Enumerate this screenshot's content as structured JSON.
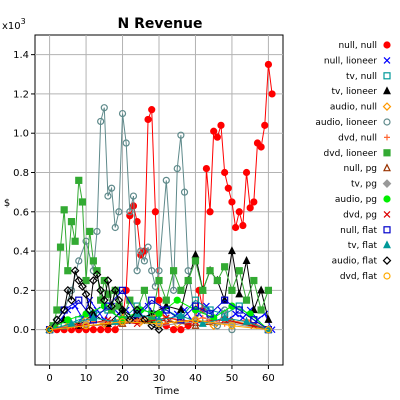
{
  "chart_data": {
    "type": "line",
    "title": "N Revenue",
    "xlabel": "Time",
    "ylabel": "$",
    "y_multiplier": "x10",
    "y_multiplier_exp": "3",
    "xlim": [
      -4,
      64
    ],
    "ylim": [
      -0.18,
      1.5
    ],
    "x_ticks": [
      "0",
      "10",
      "20",
      "30",
      "40",
      "50",
      "60"
    ],
    "x_tick_values": [
      0,
      10,
      20,
      30,
      40,
      50,
      60
    ],
    "y_ticks": [
      "0.0",
      "0.2",
      "0.4",
      "0.6",
      "0.8",
      "1.0",
      "1.2",
      "1.4"
    ],
    "y_tick_values": [
      0.0,
      0.2,
      0.4,
      0.6,
      0.8,
      1.0,
      1.2,
      1.4
    ],
    "grid": true,
    "legend_position": "right",
    "series": [
      {
        "name": "null, null",
        "color": "#ff0000",
        "marker": "circle",
        "filled": true,
        "x": [
          0,
          2,
          4,
          6,
          8,
          10,
          12,
          14,
          16,
          18,
          20,
          21,
          22,
          23,
          24,
          25,
          26,
          27,
          28,
          29,
          30,
          32,
          34,
          36,
          38,
          40,
          41,
          42,
          43,
          44,
          45,
          46,
          47,
          48,
          49,
          50,
          51,
          52,
          53,
          54,
          55,
          56,
          57,
          58,
          59,
          60,
          61
        ],
        "y": [
          0,
          0,
          0,
          0,
          0,
          0,
          0,
          0,
          0,
          0,
          0.05,
          0.2,
          0.58,
          0.63,
          0.55,
          0.38,
          0.4,
          1.07,
          1.12,
          0.6,
          0.15,
          0.02,
          0,
          0,
          0.02,
          0.05,
          0.2,
          0.1,
          0.82,
          0.6,
          1.01,
          0.98,
          1.04,
          0.8,
          0.72,
          0.65,
          0.52,
          0.6,
          0.53,
          0.8,
          0.62,
          0.65,
          0.95,
          0.93,
          1.04,
          1.35,
          1.2
        ]
      },
      {
        "name": "null, lioneer",
        "color": "#0000ff",
        "marker": "x",
        "filled": false,
        "x": [
          0,
          3,
          5,
          7,
          9,
          11,
          13,
          15,
          17,
          19,
          21,
          23,
          25,
          27,
          29,
          31,
          33,
          35,
          37,
          39,
          41,
          43,
          45,
          47,
          49,
          51,
          53,
          55,
          57,
          59,
          61
        ],
        "y": [
          0,
          0.05,
          0.1,
          0.12,
          0.06,
          0.15,
          0.1,
          0.05,
          0.12,
          0.08,
          0.1,
          0.05,
          0.08,
          0.12,
          0.06,
          0.1,
          0.05,
          0.08,
          0.1,
          0.05,
          0.08,
          0.12,
          0.06,
          0.1,
          0.05,
          0.08,
          0.06,
          0.1,
          0.05,
          0.08,
          0
        ]
      },
      {
        "name": "tv, null",
        "color": "#009999",
        "marker": "square",
        "filled": false,
        "x": [
          0,
          4,
          8,
          12,
          16,
          20,
          24,
          28,
          32,
          36,
          40,
          44,
          48,
          52,
          56,
          60
        ],
        "y": [
          0,
          0.02,
          0.05,
          0.08,
          0.1,
          0.05,
          0.12,
          0.08,
          0.1,
          0.06,
          0.15,
          0.1,
          0.08,
          0.12,
          0.05,
          0
        ]
      },
      {
        "name": "tv, lioneer",
        "color": "#000000",
        "marker": "triangle",
        "filled": true,
        "x": [
          0,
          4,
          8,
          12,
          16,
          20,
          24,
          28,
          32,
          36,
          38,
          40,
          42,
          44,
          46,
          48,
          50,
          52,
          54,
          56,
          58,
          60
        ],
        "y": [
          0,
          0.05,
          0.02,
          0.08,
          0.03,
          0.1,
          0.05,
          0.08,
          0.12,
          0.1,
          0.25,
          0.38,
          0.2,
          0.3,
          0.25,
          0.15,
          0.4,
          0.18,
          0.35,
          0.1,
          0.2,
          0.05
        ]
      },
      {
        "name": "audio, null",
        "color": "#ff9900",
        "marker": "diamond",
        "filled": false,
        "x": [
          0,
          5,
          10,
          15,
          20,
          25,
          30,
          35,
          40,
          45,
          50,
          55,
          60
        ],
        "y": [
          0,
          0.02,
          0.05,
          0.03,
          0.06,
          0.04,
          0.08,
          0.03,
          0.05,
          0.02,
          0.04,
          0.03,
          0
        ]
      },
      {
        "name": "audio, lioneer",
        "color": "#5f8a8b",
        "marker": "circle",
        "filled": false,
        "x": [
          0,
          2,
          4,
          6,
          8,
          10,
          12,
          13,
          14,
          15,
          16,
          17,
          18,
          19,
          20,
          21,
          22,
          23,
          24,
          25,
          26,
          27,
          28,
          29,
          30,
          32,
          34,
          35,
          36,
          37,
          38,
          40,
          42,
          44,
          46,
          48,
          50
        ],
        "y": [
          0,
          0.05,
          0.1,
          0.2,
          0.35,
          0.45,
          0.3,
          0.5,
          1.06,
          1.13,
          0.68,
          0.72,
          0.52,
          0.6,
          1.1,
          0.95,
          0.6,
          0.68,
          0.3,
          0.4,
          0.35,
          0.42,
          0.3,
          0.22,
          0.3,
          0.76,
          0.2,
          0.82,
          0.99,
          0.7,
          0.3,
          0.05,
          0.1,
          0.05,
          0.02,
          0.1,
          0
        ]
      },
      {
        "name": "dvd, null",
        "color": "#ff6633",
        "marker": "plus",
        "filled": false,
        "x": [
          0,
          6,
          12,
          18,
          24,
          30,
          36,
          42,
          48,
          54,
          60
        ],
        "y": [
          0,
          0.02,
          0.04,
          0.03,
          0.05,
          0.08,
          0.04,
          0.06,
          0.03,
          0.05,
          0
        ]
      },
      {
        "name": "dvd, lioneer",
        "color": "#33aa33",
        "marker": "square",
        "filled": true,
        "x": [
          0,
          1,
          2,
          3,
          4,
          5,
          6,
          7,
          8,
          9,
          10,
          11,
          12,
          13,
          14,
          15,
          16,
          17,
          18,
          19,
          20,
          22,
          24,
          26,
          28,
          30,
          32,
          34,
          36,
          38,
          40,
          42,
          44,
          46,
          48,
          50,
          52,
          54,
          56,
          58,
          60
        ],
        "y": [
          0,
          0.02,
          0.1,
          0.42,
          0.61,
          0.3,
          0.55,
          0.45,
          0.76,
          0.65,
          0.25,
          0.5,
          0.35,
          0.3,
          0.15,
          0.25,
          0.18,
          0.1,
          0.2,
          0.12,
          0.05,
          0.15,
          0.1,
          0.2,
          0.05,
          0.25,
          0.15,
          0.3,
          0.2,
          0.25,
          0.35,
          0.2,
          0.3,
          0.25,
          0.32,
          0.2,
          0.3,
          0.15,
          0.25,
          0.1,
          0.2
        ]
      },
      {
        "name": "null, pg",
        "color": "#993300",
        "marker": "triangle",
        "filled": false,
        "x": [
          0,
          10,
          20,
          30,
          40,
          50,
          60
        ],
        "y": [
          0,
          0.02,
          0.03,
          0.05,
          0.02,
          0.04,
          0
        ]
      },
      {
        "name": "tv, pg",
        "color": "#999999",
        "marker": "diamond",
        "filled": true,
        "x": [
          0,
          10,
          20,
          30,
          40,
          50,
          60
        ],
        "y": [
          0,
          0.03,
          0.05,
          0.02,
          0.04,
          0.03,
          0
        ]
      },
      {
        "name": "audio, pg",
        "color": "#00ee00",
        "marker": "circle",
        "filled": true,
        "x": [
          0,
          5,
          10,
          15,
          20,
          25,
          30,
          35,
          40,
          45,
          50,
          55,
          60
        ],
        "y": [
          0,
          0.05,
          0.08,
          0.12,
          0.05,
          0.1,
          0.08,
          0.15,
          0.1,
          0.06,
          0.12,
          0.08,
          0
        ]
      },
      {
        "name": "dvd, pg",
        "color": "#dd0000",
        "marker": "x",
        "filled": false,
        "x": [
          0,
          8,
          16,
          24,
          32,
          40,
          48,
          56,
          60
        ],
        "y": [
          0,
          0.02,
          0.05,
          0.03,
          0.06,
          0.04,
          0.05,
          0.02,
          0
        ]
      },
      {
        "name": "null, flat",
        "color": "#0000cc",
        "marker": "square",
        "filled": false,
        "x": [
          0,
          4,
          8,
          12,
          16,
          20,
          24,
          28,
          32,
          36,
          40,
          44,
          48,
          52,
          56,
          60
        ],
        "y": [
          0,
          0.1,
          0.15,
          0.05,
          0.12,
          0.2,
          0.08,
          0.15,
          0.1,
          0.05,
          0.12,
          0.08,
          0.15,
          0.1,
          0.05,
          0
        ]
      },
      {
        "name": "tv, flat",
        "color": "#009999",
        "marker": "triangle",
        "filled": true,
        "x": [
          0,
          6,
          12,
          18,
          24,
          30,
          36,
          42,
          48,
          54,
          60
        ],
        "y": [
          0,
          0.03,
          0.06,
          0.04,
          0.08,
          0.05,
          0.07,
          0.03,
          0.06,
          0.04,
          0
        ]
      },
      {
        "name": "audio, flat",
        "color": "#000000",
        "marker": "diamond",
        "filled": false,
        "x": [
          0,
          2,
          4,
          5,
          6,
          7,
          8,
          9,
          10,
          11,
          12,
          13,
          14,
          15,
          16,
          17,
          18,
          19,
          20,
          22,
          24,
          26,
          28,
          30
        ],
        "y": [
          0,
          0.05,
          0.1,
          0.2,
          0.15,
          0.3,
          0.25,
          0.22,
          0.18,
          0.1,
          0.25,
          0.28,
          0.2,
          0.15,
          0.25,
          0.12,
          0.2,
          0.15,
          0.1,
          0.05,
          0.1,
          0.05,
          0.02,
          0
        ]
      },
      {
        "name": "dvd, flat",
        "color": "#ffaa00",
        "marker": "circle",
        "filled": false,
        "x": [
          0,
          10,
          20,
          30,
          40,
          50,
          60
        ],
        "y": [
          0,
          0.02,
          0.04,
          0.03,
          0.05,
          0.02,
          0
        ]
      }
    ]
  }
}
